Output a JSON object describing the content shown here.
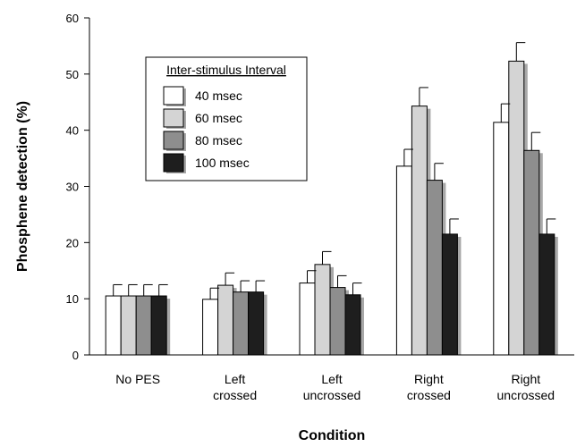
{
  "chart_data": {
    "type": "bar",
    "title": "",
    "xlabel": "Condition",
    "ylabel": "Phosphene detection (%)",
    "ylim": [
      0,
      60
    ],
    "yticks": [
      0,
      10,
      20,
      30,
      40,
      50,
      60
    ],
    "categories": [
      [
        "No PES"
      ],
      [
        "Left",
        "crossed"
      ],
      [
        "Left",
        "uncrossed"
      ],
      [
        "Right",
        "crossed"
      ],
      [
        "Right",
        "uncrossed"
      ]
    ],
    "legend": {
      "title": "Inter-stimulus Interval",
      "position": "top-left"
    },
    "series": [
      {
        "name": "40 msec",
        "color": "#ffffff",
        "values": [
          10.5,
          9.9,
          12.8,
          33.6,
          41.4
        ],
        "errors": [
          2.0,
          2.0,
          2.2,
          3.0,
          3.3
        ]
      },
      {
        "name": "60 msec",
        "color": "#d4d4d4",
        "values": [
          10.5,
          12.4,
          16.1,
          44.3,
          52.3
        ],
        "errors": [
          2.0,
          2.2,
          2.3,
          3.3,
          3.3
        ]
      },
      {
        "name": "80 msec",
        "color": "#8e8e8e",
        "values": [
          10.5,
          11.2,
          12.0,
          31.1,
          36.4
        ],
        "errors": [
          2.0,
          2.0,
          2.1,
          3.0,
          3.2
        ]
      },
      {
        "name": "100 msec",
        "color": "#1e1e1e",
        "values": [
          10.5,
          11.2,
          10.7,
          21.5,
          21.5
        ],
        "errors": [
          2.0,
          2.0,
          2.1,
          2.7,
          2.7
        ]
      }
    ]
  }
}
